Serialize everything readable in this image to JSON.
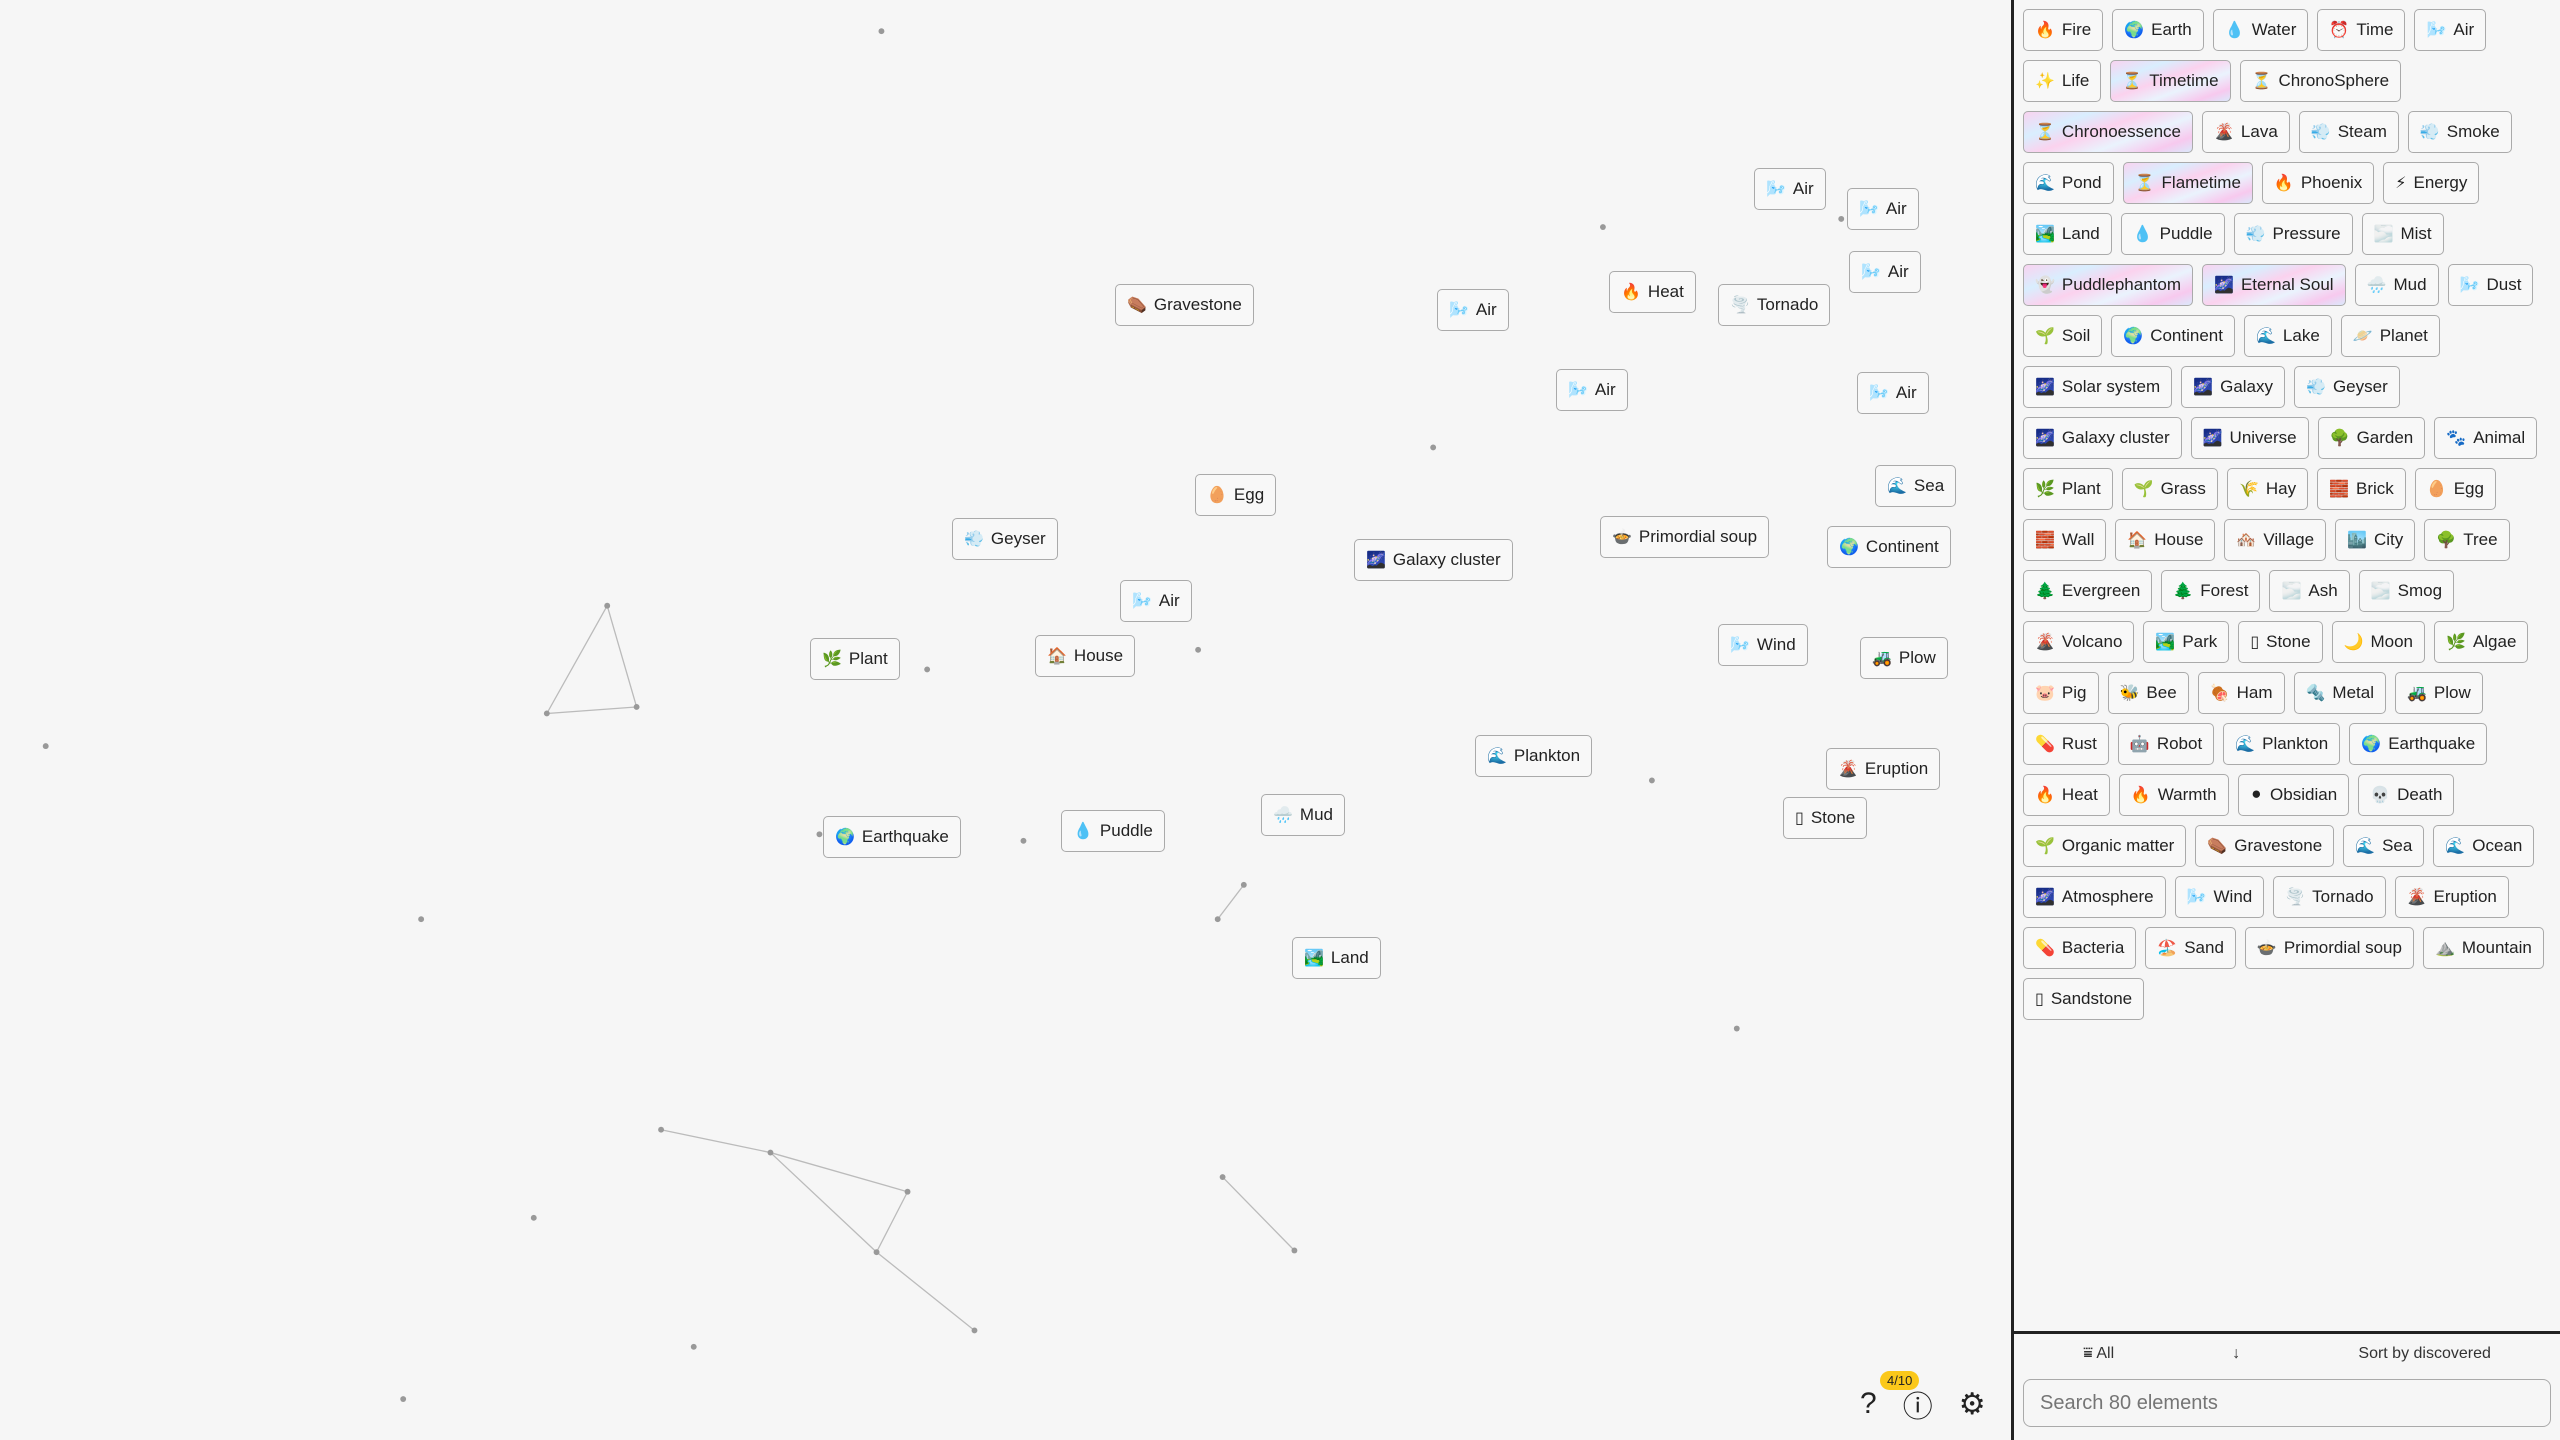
{
  "canvas": {
    "items": [
      {
        "label": "Air",
        "icon": "🌬️"
      },
      {
        "label": "Air",
        "icon": "🌬️"
      },
      {
        "label": "Air",
        "icon": "🌬️"
      },
      {
        "label": "Gravestone",
        "icon": "⚰️"
      },
      {
        "label": "Air",
        "icon": "🌬️"
      },
      {
        "label": "Heat",
        "icon": "🔥"
      },
      {
        "label": "Tornado",
        "icon": "🌪️"
      },
      {
        "label": "Air",
        "icon": "🌬️"
      },
      {
        "label": "Air",
        "icon": "🌬️"
      },
      {
        "label": "Sea",
        "icon": "🌊"
      },
      {
        "label": "Egg",
        "icon": "🥚"
      },
      {
        "label": "Geyser",
        "icon": "💨"
      },
      {
        "label": "Galaxy cluster",
        "icon": "🌌"
      },
      {
        "label": "Primordial soup",
        "icon": "🍲"
      },
      {
        "label": "Continent",
        "icon": "🌍"
      },
      {
        "label": "Air",
        "icon": "🌬️"
      },
      {
        "label": "Plant",
        "icon": "🌿"
      },
      {
        "label": "House",
        "icon": "🏠"
      },
      {
        "label": "Wind",
        "icon": "🌬️"
      },
      {
        "label": "Plow",
        "icon": "🚜"
      },
      {
        "label": "Plankton",
        "icon": "🌊"
      },
      {
        "label": "Eruption",
        "icon": "🌋"
      },
      {
        "label": "Stone",
        "icon": "▯"
      },
      {
        "label": "Earthquake",
        "icon": "🌍"
      },
      {
        "label": "Puddle",
        "icon": "💧"
      },
      {
        "label": "Mud",
        "icon": "🌧️"
      },
      {
        "label": "Land",
        "icon": "🏞️"
      }
    ]
  },
  "sidebar": {
    "items": [
      {
        "label": "Fire",
        "icon": "🔥"
      },
      {
        "label": "Earth",
        "icon": "🌍"
      },
      {
        "label": "Water",
        "icon": "💧"
      },
      {
        "label": "Time",
        "icon": "⏰"
      },
      {
        "label": "Air",
        "icon": "🌬️"
      },
      {
        "label": "Life",
        "icon": "✨"
      },
      {
        "label": "Timetime",
        "icon": "⏳",
        "special": true
      },
      {
        "label": "ChronoSphere",
        "icon": "⏳"
      },
      {
        "label": "Chronoessence",
        "icon": "⏳",
        "special": true
      },
      {
        "label": "Lava",
        "icon": "🌋"
      },
      {
        "label": "Steam",
        "icon": "💨"
      },
      {
        "label": "Smoke",
        "icon": "💨"
      },
      {
        "label": "Pond",
        "icon": "🌊"
      },
      {
        "label": "Flametime",
        "icon": "⏳",
        "special": true
      },
      {
        "label": "Phoenix",
        "icon": "🔥"
      },
      {
        "label": "Energy",
        "icon": "⚡"
      },
      {
        "label": "Land",
        "icon": "🏞️"
      },
      {
        "label": "Puddle",
        "icon": "💧"
      },
      {
        "label": "Pressure",
        "icon": "💨"
      },
      {
        "label": "Mist",
        "icon": "🌫️"
      },
      {
        "label": "Puddlephantom",
        "icon": "👻",
        "special": true
      },
      {
        "label": "Eternal Soul",
        "icon": "🌌",
        "special": true
      },
      {
        "label": "Mud",
        "icon": "🌧️"
      },
      {
        "label": "Dust",
        "icon": "🌬️"
      },
      {
        "label": "Soil",
        "icon": "🌱"
      },
      {
        "label": "Continent",
        "icon": "🌍"
      },
      {
        "label": "Lake",
        "icon": "🌊"
      },
      {
        "label": "Planet",
        "icon": "🪐"
      },
      {
        "label": "Solar system",
        "icon": "🌌"
      },
      {
        "label": "Galaxy",
        "icon": "🌌"
      },
      {
        "label": "Geyser",
        "icon": "💨"
      },
      {
        "label": "Galaxy cluster",
        "icon": "🌌"
      },
      {
        "label": "Universe",
        "icon": "🌌"
      },
      {
        "label": "Garden",
        "icon": "🌳"
      },
      {
        "label": "Animal",
        "icon": "🐾"
      },
      {
        "label": "Plant",
        "icon": "🌿"
      },
      {
        "label": "Grass",
        "icon": "🌱"
      },
      {
        "label": "Hay",
        "icon": "🌾"
      },
      {
        "label": "Brick",
        "icon": "🧱"
      },
      {
        "label": "Egg",
        "icon": "🥚"
      },
      {
        "label": "Wall",
        "icon": "🧱"
      },
      {
        "label": "House",
        "icon": "🏠"
      },
      {
        "label": "Village",
        "icon": "🏘️"
      },
      {
        "label": "City",
        "icon": "🏙️"
      },
      {
        "label": "Tree",
        "icon": "🌳"
      },
      {
        "label": "Evergreen",
        "icon": "🌲"
      },
      {
        "label": "Forest",
        "icon": "🌲"
      },
      {
        "label": "Ash",
        "icon": "🌫️"
      },
      {
        "label": "Smog",
        "icon": "🌫️"
      },
      {
        "label": "Volcano",
        "icon": "🌋"
      },
      {
        "label": "Park",
        "icon": "🏞️"
      },
      {
        "label": "Stone",
        "icon": "▯"
      },
      {
        "label": "Moon",
        "icon": "🌙"
      },
      {
        "label": "Algae",
        "icon": "🌿"
      },
      {
        "label": "Pig",
        "icon": "🐷"
      },
      {
        "label": "Bee",
        "icon": "🐝"
      },
      {
        "label": "Ham",
        "icon": "🍖"
      },
      {
        "label": "Metal",
        "icon": "🔩"
      },
      {
        "label": "Plow",
        "icon": "🚜"
      },
      {
        "label": "Rust",
        "icon": "💊"
      },
      {
        "label": "Robot",
        "icon": "🤖"
      },
      {
        "label": "Plankton",
        "icon": "🌊"
      },
      {
        "label": "Earthquake",
        "icon": "🌍"
      },
      {
        "label": "Heat",
        "icon": "🔥"
      },
      {
        "label": "Warmth",
        "icon": "🔥"
      },
      {
        "label": "Obsidian",
        "icon": "⚫"
      },
      {
        "label": "Death",
        "icon": "💀"
      },
      {
        "label": "Organic matter",
        "icon": "🌱"
      },
      {
        "label": "Gravestone",
        "icon": "⚰️"
      },
      {
        "label": "Sea",
        "icon": "🌊"
      },
      {
        "label": "Ocean",
        "icon": "🌊"
      },
      {
        "label": "Atmosphere",
        "icon": "🌌"
      },
      {
        "label": "Wind",
        "icon": "🌬️"
      },
      {
        "label": "Tornado",
        "icon": "🌪️"
      },
      {
        "label": "Eruption",
        "icon": "🌋"
      },
      {
        "label": "Bacteria",
        "icon": "💊"
      },
      {
        "label": "Sand",
        "icon": "🏖️"
      },
      {
        "label": "Primordial soup",
        "icon": "🍲"
      },
      {
        "label": "Mountain",
        "icon": "⛰️"
      },
      {
        "label": "Sandstone",
        "icon": "▯"
      }
    ],
    "filter_label": "All",
    "filter_icon": "filter-icon",
    "sort_direction_icon": "↓",
    "sort_label": "Sort by discovered",
    "search_placeholder": "Search 80 elements"
  },
  "toolbar": {
    "badge": "4/10",
    "help_icon": "?",
    "info_icon": "ⓘ",
    "settings_icon": "⚙"
  }
}
